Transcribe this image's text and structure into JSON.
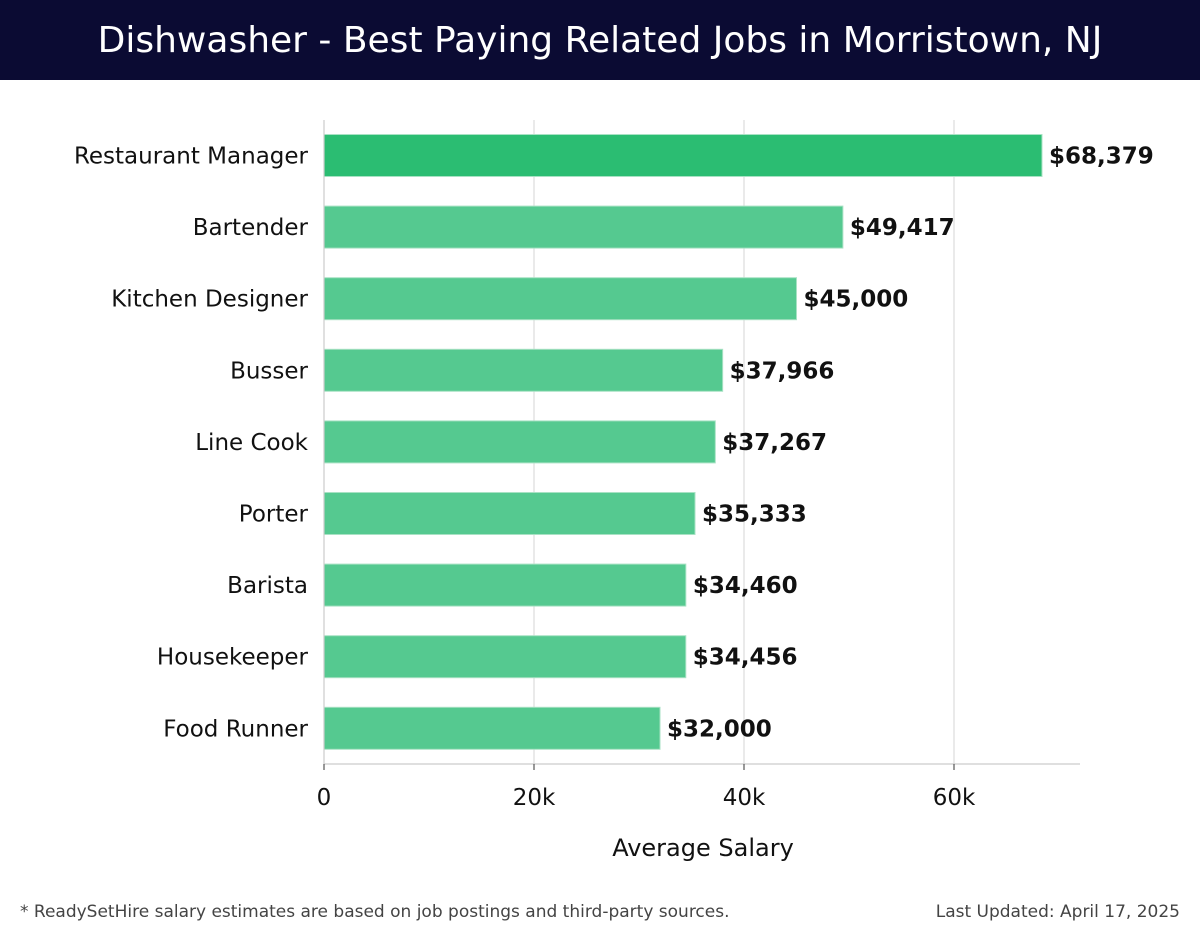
{
  "header": {
    "title": "Dishwasher - Best Paying Related Jobs in Morristown, NJ"
  },
  "footer": {
    "note": "* ReadySetHire salary estimates are based on job postings and third-party sources.",
    "updated": "Last Updated: April 17, 2025"
  },
  "colors": {
    "header_bg": "#0b0b33",
    "bar_top": "#2bbd72",
    "bar": "#55c990",
    "grid": "#dddddd",
    "axis": "#cccccc"
  },
  "chart_data": {
    "type": "bar",
    "orientation": "horizontal",
    "title": "Dishwasher - Best Paying Related Jobs in Morristown, NJ",
    "xlabel": "Average Salary",
    "ylabel": "",
    "xlim": [
      0,
      72000
    ],
    "grid": true,
    "x_ticks": [
      {
        "value": 0,
        "label": "0"
      },
      {
        "value": 20000,
        "label": "20k"
      },
      {
        "value": 40000,
        "label": "40k"
      },
      {
        "value": 60000,
        "label": "60k"
      }
    ],
    "categories": [
      "Restaurant Manager",
      "Bartender",
      "Kitchen Designer",
      "Busser",
      "Line Cook",
      "Porter",
      "Barista",
      "Housekeeper",
      "Food Runner"
    ],
    "values": [
      68379,
      49417,
      45000,
      37966,
      37267,
      35333,
      34460,
      34456,
      32000
    ],
    "value_labels": [
      "$68,379",
      "$49,417",
      "$45,000",
      "$37,966",
      "$37,267",
      "$35,333",
      "$34,460",
      "$34,456",
      "$32,000"
    ]
  }
}
